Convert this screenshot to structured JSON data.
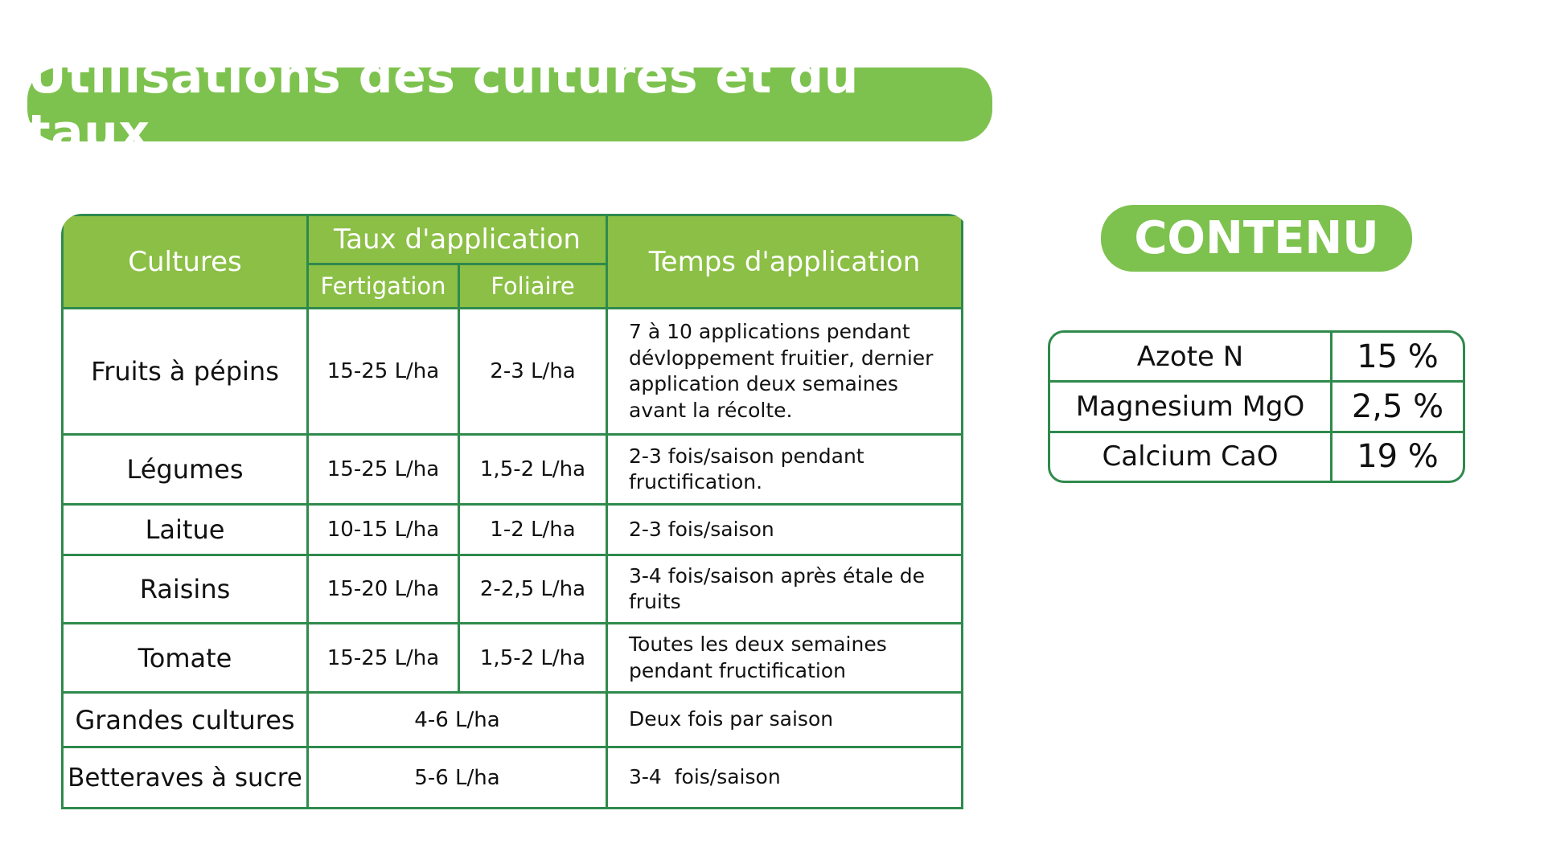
{
  "title": "Utilisations des cultures et du taux",
  "contents_title": "CONTENU",
  "colors": {
    "accent": "#7dc24e",
    "header": "#8bbf45",
    "border": "#2f8a4c"
  },
  "table": {
    "headers": {
      "crops": "Cultures",
      "rate": "Taux d'application",
      "fertigation": "Fertigation",
      "foliar": "Foliaire",
      "time": "Temps d'application"
    },
    "rows": [
      {
        "crop": "Fruits à pépins",
        "fertigation": "15-25 L/ha",
        "foliar": "2-3 L/ha",
        "time": "7 à 10 applications pendant dévloppement fruitier, dernier application deux semaines avant la récolte."
      },
      {
        "crop": "Légumes",
        "fertigation": "15-25 L/ha",
        "foliar": "1,5-2 L/ha",
        "time": "2-3 fois/saison pendant fructification."
      },
      {
        "crop": "Laitue",
        "fertigation": "10-15 L/ha",
        "foliar": "1-2 L/ha",
        "time": "2-3 fois/saison"
      },
      {
        "crop": "Raisins",
        "fertigation": "15-20 L/ha",
        "foliar": "2-2,5 L/ha",
        "time": "3-4 fois/saison après étale de fruits"
      },
      {
        "crop": "Tomate",
        "fertigation": "15-25 L/ha",
        "foliar": "1,5-2 L/ha",
        "time": "Toutes les deux semaines pendant fructification"
      },
      {
        "crop": "Grandes cultures",
        "rate": "4-6 L/ha",
        "time": "Deux fois par saison"
      },
      {
        "crop": "Betteraves à sucre",
        "rate": "5-6 L/ha",
        "time": "3-4  fois/saison"
      }
    ]
  },
  "contents": [
    {
      "name": "Azote N",
      "value": "15 %"
    },
    {
      "name": "Magnesium MgO",
      "value": "2,5 %"
    },
    {
      "name": "Calcium CaO",
      "value": "19 %"
    }
  ]
}
